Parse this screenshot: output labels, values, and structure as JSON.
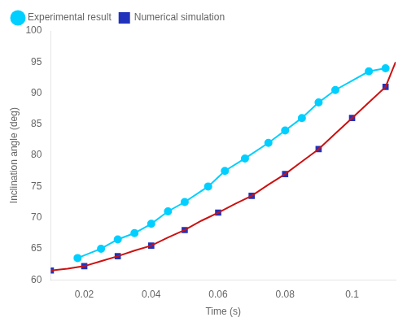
{
  "chart_data": {
    "type": "line",
    "xlabel": "Time (s)",
    "ylabel": "Inclination angle (deg)",
    "series": [
      {
        "name": "Experimental result",
        "x": [
          0.018,
          0.025,
          0.03,
          0.035,
          0.04,
          0.045,
          0.05,
          0.057,
          0.062,
          0.068,
          0.075,
          0.08,
          0.085,
          0.09,
          0.095,
          0.105,
          0.11
        ],
        "values": [
          63.5,
          65.0,
          66.5,
          67.5,
          69.0,
          71.0,
          72.5,
          75.0,
          77.5,
          79.5,
          82.0,
          84.0,
          86.0,
          88.5,
          90.5,
          93.5,
          94.0
        ],
        "color": "#00CFFF",
        "marker": "circle",
        "line_style": "solid"
      },
      {
        "x": [
          0.01,
          0.015,
          0.02,
          0.025,
          0.03,
          0.035,
          0.04,
          0.045,
          0.05,
          0.055,
          0.06,
          0.065,
          0.07,
          0.075,
          0.08,
          0.085,
          0.09,
          0.095,
          0.1,
          0.105,
          0.11,
          0.113
        ],
        "values": [
          61.5,
          61.8,
          62.2,
          63.0,
          63.8,
          64.7,
          65.5,
          66.8,
          68.0,
          69.5,
          70.8,
          72.2,
          73.5,
          75.3,
          77.0,
          79.0,
          81.0,
          83.5,
          86.0,
          88.5,
          91.0,
          95.0
        ],
        "color": "#CC1111",
        "marker": "none",
        "line_style": "solid"
      },
      {
        "name": "Numerical simulation",
        "x": [
          0.01,
          0.02,
          0.03,
          0.04,
          0.05,
          0.06,
          0.07,
          0.08,
          0.09,
          0.1,
          0.11
        ],
        "values": [
          61.5,
          62.2,
          63.8,
          65.5,
          68.0,
          70.8,
          73.5,
          77.0,
          81.0,
          86.0,
          91.0
        ],
        "color": "#2233BB",
        "marker": "square",
        "line_style": "none"
      }
    ],
    "xlim": [
      0.01,
      0.113
    ],
    "ylim": [
      60,
      100
    ],
    "xticks": [
      0.02,
      0.04,
      0.06,
      0.08,
      0.1
    ],
    "yticks": [
      60,
      65,
      70,
      75,
      80,
      85,
      90,
      95,
      100
    ],
    "grid": false,
    "legend": "upper left"
  }
}
